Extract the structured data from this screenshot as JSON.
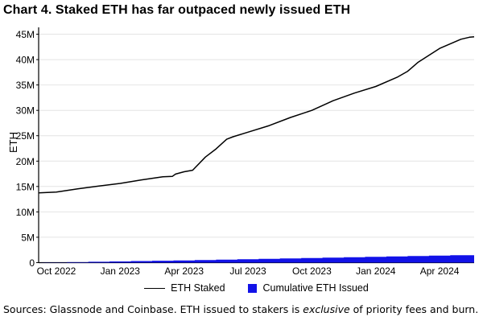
{
  "title": "Chart 4. Staked ETH has far outpaced newly issued ETH",
  "footer": {
    "prefix": "Sources: Glassnode and Coinbase. ETH issued to stakers is ",
    "italic": "exclusive",
    "suffix": " of priority fees and burn."
  },
  "colors": {
    "staked_line": "#000000",
    "issued_fill": "#1212e8",
    "gridline": "#e4e4e4",
    "axis": "#000000"
  },
  "chart_data": {
    "type": "line",
    "title": "Chart 4. Staked ETH has far outpaced newly issued ETH",
    "xlabel": "",
    "ylabel": "ETH",
    "ylim": [
      0,
      45
    ],
    "y_unit": "million ETH",
    "grid": "horizontal only",
    "legend_position": "bottom center",
    "y_ticks": [
      "0",
      "5M",
      "10M",
      "15M",
      "20M",
      "25M",
      "30M",
      "35M",
      "40M",
      "45M"
    ],
    "x_ticks": [
      {
        "label": "Oct 2022",
        "m": 0
      },
      {
        "label": "Jan 2023",
        "m": 3
      },
      {
        "label": "Apr 2023",
        "m": 6
      },
      {
        "label": "Jul 2023",
        "m": 9
      },
      {
        "label": "Oct 2023",
        "m": 12
      },
      {
        "label": "Jan 2024",
        "m": 15
      },
      {
        "label": "Apr 2024",
        "m": 18
      }
    ],
    "legend": [
      {
        "name": "ETH Staked",
        "type": "line",
        "color": "#000000"
      },
      {
        "name": "Cumulative ETH Issued",
        "type": "square",
        "color": "#1212e8"
      }
    ],
    "series": [
      {
        "name": "ETH Staked",
        "type": "line",
        "x_definition": "months after Oct 2022 (fractional)",
        "y_definition": "million ETH",
        "points": [
          [
            -0.83,
            13.75
          ],
          [
            0,
            13.9
          ],
          [
            1,
            14.55
          ],
          [
            2,
            15.1
          ],
          [
            3,
            15.6
          ],
          [
            4,
            16.3
          ],
          [
            5,
            16.9
          ],
          [
            5.45,
            17.0
          ],
          [
            5.6,
            17.45
          ],
          [
            6,
            17.9
          ],
          [
            6.4,
            18.2
          ],
          [
            7,
            20.8
          ],
          [
            7.5,
            22.4
          ],
          [
            8,
            24.3
          ],
          [
            8.3,
            24.8
          ],
          [
            9,
            25.7
          ],
          [
            10,
            27.0
          ],
          [
            11,
            28.6
          ],
          [
            12,
            30.0
          ],
          [
            13,
            31.9
          ],
          [
            14,
            33.4
          ],
          [
            15,
            34.7
          ],
          [
            16,
            36.5
          ],
          [
            16.5,
            37.7
          ],
          [
            17,
            39.5
          ],
          [
            18,
            42.2
          ],
          [
            19,
            44.0
          ],
          [
            19.4,
            44.4
          ],
          [
            19.7,
            44.5
          ]
        ]
      },
      {
        "name": "Cumulative ETH Issued",
        "type": "step-area",
        "months": [
          "Oct 2022",
          "Nov 2022",
          "Dec 2022",
          "Jan 2023",
          "Feb 2023",
          "Mar 2023",
          "Apr 2023",
          "May 2023",
          "Jun 2023",
          "Jul 2023",
          "Aug 2023",
          "Sep 2023",
          "Oct 2023",
          "Nov 2023",
          "Dec 2023",
          "Jan 2024",
          "Feb 2024",
          "Mar 2024",
          "Apr 2024",
          "May 2024"
        ],
        "monthly_values": [
          0.04,
          0.1,
          0.17,
          0.24,
          0.31,
          0.38,
          0.45,
          0.52,
          0.59,
          0.66,
          0.74,
          0.82,
          0.9,
          0.98,
          1.06,
          1.14,
          1.22,
          1.31,
          1.4,
          1.48
        ]
      }
    ]
  }
}
